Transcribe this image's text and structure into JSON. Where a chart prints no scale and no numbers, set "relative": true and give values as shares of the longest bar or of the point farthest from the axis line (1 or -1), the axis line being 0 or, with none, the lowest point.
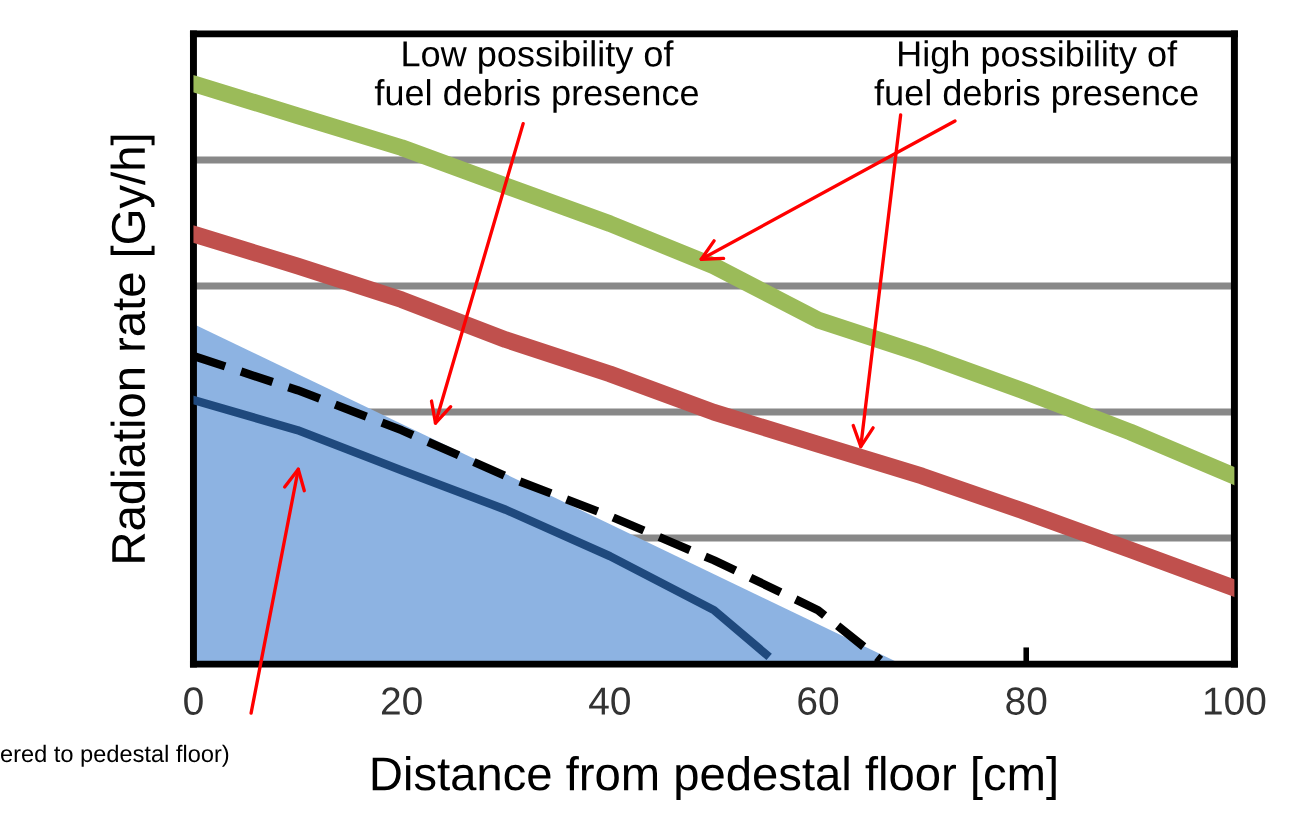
{
  "chart_data": {
    "type": "line",
    "relative": true,
    "xlabel": "Distance from pedestal floor [cm]",
    "ylabel": "Radiation rate [Gy/h]",
    "xlim": [
      0,
      100
    ],
    "xticks": [
      0,
      20,
      40,
      60,
      80,
      100
    ],
    "tick_labels": "x",
    "grid": "y",
    "marker": "none",
    "series": [
      {
        "type": "area",
        "color": "#8db3e2",
        "x": [
          0,
          68
        ],
        "values": [
          0.586,
          0
        ]
      },
      {
        "color": "#9bbb59",
        "x": [
          0,
          10,
          20,
          30,
          40,
          50,
          60,
          70,
          80,
          90,
          100
        ],
        "values": [
          1,
          0.945,
          0.89,
          0.824,
          0.759,
          0.686,
          0.593,
          0.534,
          0.469,
          0.4,
          0.324
        ]
      },
      {
        "color": "#c0504d",
        "x": [
          0,
          10,
          20,
          30,
          40,
          50,
          60,
          70,
          80,
          90,
          100
        ],
        "values": [
          0.741,
          0.686,
          0.628,
          0.559,
          0.5,
          0.434,
          0.379,
          0.324,
          0.262,
          0.197,
          0.131
        ]
      },
      {
        "color": "#1f497d",
        "x": [
          0,
          10,
          20,
          30,
          40,
          50,
          55
        ],
        "values": [
          0.455,
          0.403,
          0.334,
          0.266,
          0.186,
          0.093,
          0.017
        ]
      },
      {
        "color": "#000000",
        "line_style": "dashed",
        "x": [
          0,
          10,
          20,
          30,
          40,
          50,
          60,
          66
        ],
        "values": [
          0.531,
          0.472,
          0.403,
          0.324,
          0.255,
          0.179,
          0.093,
          0.007
        ]
      }
    ],
    "annotations": [
      {
        "text": "Low possibility of\nfuel debris presence",
        "x": 23,
        "y": 0.4
      },
      {
        "text": "High possibility of\nfuel debris presence",
        "x": 48,
        "y": 0.69
      },
      "ered to pedestal floor)"
    ]
  }
}
